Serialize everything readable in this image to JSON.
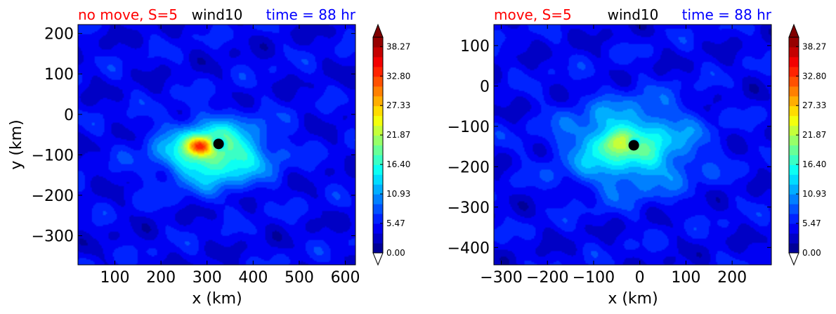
{
  "chart_data": [
    {
      "type": "heatmap",
      "subtype": "filled-contour",
      "title_left": "no move, S=5",
      "title_center": "wind10",
      "title_right": "time = 88 hr",
      "title_colors": {
        "left": "#ff0000",
        "center": "#000000",
        "right": "#0000ff"
      },
      "xlabel": "x (km)",
      "ylabel": "y (km)",
      "xlim": [
        20,
        622
      ],
      "ylim": [
        -372,
        222
      ],
      "xticks": [
        100,
        200,
        300,
        400,
        500,
        600
      ],
      "yticks": [
        200,
        100,
        0,
        -100,
        -200,
        -300
      ],
      "storm_center": [
        325,
        -73
      ],
      "field": {
        "background": 4.5,
        "core": {
          "x": 315,
          "y": -95,
          "peak": 16.5,
          "sx": 110,
          "sy": 75
        },
        "jet": {
          "x": 285,
          "y": -78,
          "peak": 15,
          "sx": 28,
          "sy": 22
        },
        "eye": {
          "x": 325,
          "y": -73,
          "depth": 12,
          "s": 14
        }
      },
      "colorbar": {
        "min": 0.0,
        "max": 40.0,
        "extend": "both",
        "tick_labels": [
          "38.27",
          "32.80",
          "27.33",
          "21.87",
          "16.40",
          "10.93",
          "5.47",
          "0.00"
        ],
        "tick_values": [
          38.27,
          32.8,
          27.33,
          21.87,
          16.4,
          10.93,
          5.47,
          0.0
        ]
      }
    },
    {
      "type": "heatmap",
      "subtype": "filled-contour",
      "title_left": "move, S=5",
      "title_center": "wind10",
      "title_right": "time = 88 hr",
      "title_colors": {
        "left": "#ff0000",
        "center": "#000000",
        "right": "#0000ff"
      },
      "xlabel": "x (km)",
      "ylabel": "",
      "xlim": [
        -316,
        285
      ],
      "ylim": [
        -443,
        152
      ],
      "xticks": [
        -300,
        -200,
        -100,
        0,
        100,
        200
      ],
      "yticks": [
        100,
        0,
        -100,
        -200,
        -300,
        -400
      ],
      "storm_center": [
        -13,
        -147
      ],
      "field": {
        "background": 4.5,
        "core": {
          "x": -20,
          "y": -150,
          "peak": 13,
          "sx": 130,
          "sy": 100
        },
        "jet": {
          "x": -55,
          "y": -140,
          "peak": 7,
          "sx": 35,
          "sy": 28
        },
        "eye": {
          "x": -13,
          "y": -140,
          "depth": 9,
          "s": 12
        }
      },
      "colorbar": {
        "min": 0.0,
        "max": 40.0,
        "extend": "both",
        "tick_labels": [
          "38.27",
          "32.80",
          "27.33",
          "21.87",
          "16.40",
          "10.93",
          "5.47",
          "0.00"
        ],
        "tick_values": [
          38.27,
          32.8,
          27.33,
          21.87,
          16.4,
          10.93,
          5.47,
          0.0
        ]
      }
    }
  ]
}
